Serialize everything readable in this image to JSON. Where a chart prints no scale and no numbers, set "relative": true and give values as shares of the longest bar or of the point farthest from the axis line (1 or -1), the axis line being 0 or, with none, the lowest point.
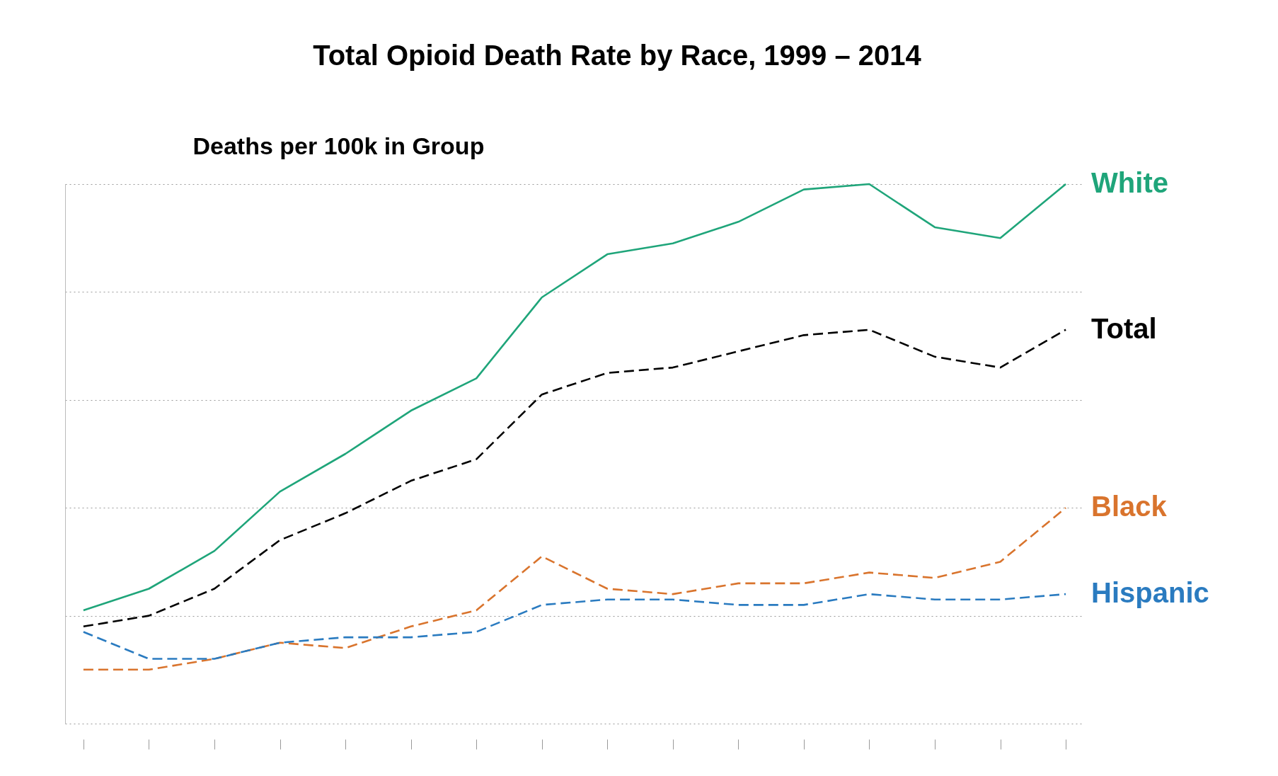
{
  "chart_data": {
    "type": "line",
    "title": "Total Opioid Death Rate by Race, 1999 – 2014",
    "ylabel": "Deaths per 100k in Group",
    "relative": true,
    "grid": "y",
    "legend": false,
    "marker": "none",
    "categories": [
      null,
      null,
      null,
      null,
      null,
      null,
      null,
      null,
      null,
      null,
      null,
      null,
      null,
      null,
      null,
      null
    ],
    "series": [
      {
        "name": "White",
        "color": "#1fa57a",
        "line_style": "solid",
        "values": [
          0.21,
          0.25,
          0.32,
          0.43,
          0.5,
          0.58,
          0.64,
          0.79,
          0.87,
          0.89,
          0.93,
          0.99,
          1.0,
          0.92,
          0.9,
          1.0
        ]
      },
      {
        "name": "Total",
        "color": "#000000",
        "line_style": "dashed",
        "values": [
          0.18,
          0.2,
          0.25,
          0.34,
          0.39,
          0.45,
          0.49,
          0.61,
          0.65,
          0.66,
          0.69,
          0.72,
          0.73,
          0.68,
          0.66,
          0.73
        ]
      },
      {
        "name": "Black",
        "color": "#d9742d",
        "line_style": "dashed",
        "values": [
          0.1,
          0.1,
          0.12,
          0.15,
          0.14,
          0.18,
          0.21,
          0.31,
          0.25,
          0.24,
          0.26,
          0.26,
          0.28,
          0.27,
          0.3,
          0.4
        ]
      },
      {
        "name": "Hispanic",
        "color": "#2a7bc0",
        "line_style": "dashed",
        "values": [
          0.17,
          0.12,
          0.12,
          0.15,
          0.16,
          0.16,
          0.17,
          0.22,
          0.23,
          0.23,
          0.22,
          0.22,
          0.24,
          0.23,
          0.23,
          0.24
        ]
      }
    ]
  }
}
